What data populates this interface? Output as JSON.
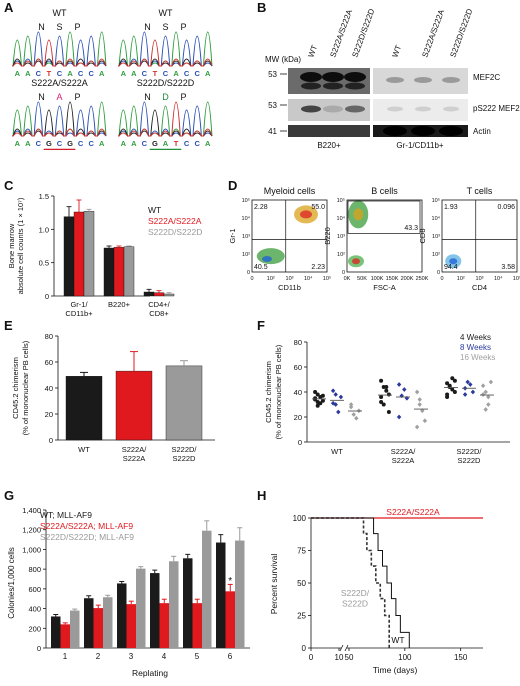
{
  "panels": {
    "A": {
      "label": "A",
      "traces": [
        {
          "title": "WT",
          "aa": [
            "N",
            "S",
            "P"
          ],
          "seq": [
            "A",
            "A",
            "C",
            "T",
            "C",
            "A",
            "C",
            "C",
            "A"
          ]
        },
        {
          "title": "WT",
          "aa": [
            "N",
            "S",
            "P"
          ],
          "seq": [
            "A",
            "A",
            "C",
            "T",
            "C",
            "A",
            "C",
            "C",
            "A"
          ]
        },
        {
          "title": "S222A/S222A",
          "aa_marked": "A",
          "seq": [
            "A",
            "A",
            "C",
            "G",
            "C",
            "G",
            "C",
            "C",
            "A"
          ]
        },
        {
          "title": "S222D/S222D",
          "aa_marked": "D",
          "seq": [
            "A",
            "A",
            "C",
            "G",
            "A",
            "T",
            "C",
            "C",
            "A"
          ]
        }
      ],
      "colors": {
        "A": "#2e9e3e",
        "C": "#2a4fb5",
        "G": "#222222",
        "T": "#d02f2f",
        "mut": "#e0207a",
        "underline_a": "#d21f2a",
        "underline_d": "#1f8f3a"
      }
    },
    "B": {
      "label": "B",
      "mw_header": "MW (kDa)",
      "mw_markers": [
        "53",
        "53",
        "41"
      ],
      "lane_labels_left": [
        "WT",
        "S222A/S222A",
        "S222D/S222D"
      ],
      "lane_labels_right": [
        "WT",
        "S222A/S222A",
        "S222D/S222D"
      ],
      "band_labels": [
        "MEF2C",
        "pS222 MEF2C",
        "Actin"
      ],
      "group_labels": [
        "B220+",
        "Gr-1/CD11b+"
      ]
    },
    "C": {
      "label": "C",
      "ylabel_1": "Bone marrow",
      "ylabel_2": "absolute cell counts (1 × 10⁷)",
      "legend": [
        "WT",
        "S222A/S222A",
        "S222D/S222D"
      ]
    },
    "D": {
      "label": "D",
      "plots": [
        {
          "title": "Myeloid cells",
          "xaxis": "CD11b",
          "yaxis": "Gr-1",
          "q": [
            "2.28",
            "55.0",
            "40.5",
            "2.23"
          ]
        },
        {
          "title": "B cells",
          "xaxis": "FSC-A",
          "yaxis": "B220",
          "gate": "43.3",
          "xticks": [
            "0K",
            "50K",
            "100K",
            "150K",
            "200K",
            "250K"
          ]
        },
        {
          "title": "T cells",
          "xaxis": "CD4",
          "yaxis": "CD8",
          "q": [
            "1.93",
            "0.096",
            "94.4",
            "3.58"
          ]
        }
      ],
      "log_ticks": [
        "0",
        "10²",
        "10³",
        "10⁴",
        "10⁵"
      ]
    },
    "E": {
      "label": "E",
      "ylabel_1": "CD45.2 chimerism",
      "ylabel_2": "(% of mononuclear PB cells)"
    },
    "F": {
      "label": "F",
      "ylabel_1": "CD45.2 chimerism",
      "ylabel_2": "(% of mononuclear PB cells)",
      "legend": [
        "4 Weeks",
        "8 Weeks",
        "16 Weeks"
      ]
    },
    "G": {
      "label": "G",
      "ylabel": "Colonies/1,000 cells",
      "xlabel": "Replating",
      "legend": [
        "WT; MLL-AF9",
        "S222A/S222A; MLL-AF9",
        "S222D/S222D; MLL-AF9"
      ],
      "star": "*"
    },
    "H": {
      "label": "H",
      "ylabel": "Percent survival",
      "xlabel": "Time (days)",
      "curve_labels": {
        "sa": "S222A/S222A",
        "sd_1": "S222D/",
        "sd_2": "S222D",
        "wt": "WT"
      }
    }
  },
  "colors": {
    "wt": "#1a1a1a",
    "sa": "#e0191f",
    "sd": "#9a9a9a",
    "w8": "#2b3a9c",
    "w16": "#a0a0a0"
  },
  "chart_data": [
    {
      "panel": "C",
      "type": "bar",
      "categories": [
        "Gr-1/\nCD11b+",
        "B220+",
        "CD4+/\nCD8+"
      ],
      "series": [
        {
          "name": "WT",
          "values": [
            1.19,
            0.72,
            0.06
          ]
        },
        {
          "name": "S222A/S222A",
          "values": [
            1.26,
            0.73,
            0.05
          ]
        },
        {
          "name": "S222D/S222D",
          "values": [
            1.27,
            0.74,
            0.03
          ]
        }
      ],
      "errors": [
        [
          0.15,
          0.03,
          0.04
        ],
        [
          0.18,
          0.02,
          0.03
        ],
        [
          0.03,
          0.01,
          0.02
        ]
      ],
      "ylim": [
        0,
        1.5
      ],
      "yticks": [
        "0",
        "0.5",
        "1.0",
        "1.5"
      ]
    },
    {
      "panel": "E",
      "type": "bar",
      "categories": [
        "WT",
        "S222A/\nS222A",
        "S222D/\nS222D"
      ],
      "values": [
        49,
        53,
        57
      ],
      "errors": [
        3,
        15,
        4
      ],
      "ylim": [
        0,
        80
      ],
      "yticks": [
        "0",
        "20",
        "40",
        "60",
        "80"
      ]
    },
    {
      "panel": "F",
      "type": "scatter",
      "categories": [
        "WT",
        "S222A/\nS222A",
        "S222D/\nS222D"
      ],
      "series": [
        {
          "name": "4 Weeks",
          "groups": [
            [
              35,
              38,
              31,
              37,
              34,
              29,
              36,
              33,
              40,
              32
            ],
            [
              49,
              44,
              41,
              38,
              32,
              30,
              44,
              24,
              36
            ],
            [
              47,
              44,
              51,
              40,
              38,
              45,
              42,
              49,
              36
            ]
          ]
        },
        {
          "name": "8 Weeks",
          "groups": [
            [
              41,
              30,
              24,
              36,
              31,
              38
            ],
            [
              46,
              37,
              42,
              35,
              20
            ],
            [
              43,
              48,
              46,
              40,
              38
            ]
          ]
        },
        {
          "name": "16 Weeks",
          "groups": [
            [
              28,
              22,
              19,
              25,
              30
            ],
            [
              40,
              34,
              25,
              17,
              12,
              30
            ],
            [
              45,
              40,
              30,
              48,
              38,
              26,
              36
            ]
          ]
        }
      ],
      "ylim": [
        0,
        80
      ],
      "yticks": [
        "0",
        "20",
        "40",
        "60",
        "80"
      ]
    },
    {
      "panel": "G",
      "type": "bar",
      "categories": [
        "1",
        "2",
        "3",
        "4",
        "5",
        "6"
      ],
      "series": [
        {
          "name": "WT; MLL-AF9",
          "values": [
            320,
            505,
            655,
            760,
            910,
            1070
          ]
        },
        {
          "name": "S222A/S222A; MLL-AF9",
          "values": [
            240,
            405,
            445,
            455,
            455,
            575
          ]
        },
        {
          "name": "S222D/S222D; MLL-AF9",
          "values": [
            380,
            515,
            805,
            880,
            1190,
            1090
          ]
        }
      ],
      "errors": [
        [
          20,
          25,
          20,
          30,
          40,
          80
        ],
        [
          15,
          30,
          30,
          40,
          40,
          70
        ],
        [
          15,
          20,
          20,
          50,
          100,
          130
        ]
      ],
      "ylim": [
        0,
        1400
      ],
      "yticks": [
        "0",
        "200",
        "400",
        "600",
        "800",
        "1,000",
        "1,200",
        "1,400"
      ]
    },
    {
      "panel": "H",
      "type": "line",
      "xlim": [
        0,
        170
      ],
      "ylim": [
        0,
        100
      ],
      "xticks": [
        "0",
        "10",
        "50",
        "100",
        "150"
      ],
      "yticks": [
        "0",
        "25",
        "50",
        "75",
        "100"
      ],
      "series": [
        {
          "name": "S222A/S222A",
          "x": [
            0,
            170
          ],
          "y": [
            100,
            100
          ]
        },
        {
          "name": "S222D/S222D",
          "x": [
            0,
            60,
            63,
            66,
            70,
            74,
            78,
            82,
            86
          ],
          "y": [
            100,
            100,
            88,
            75,
            63,
            50,
            38,
            25,
            0
          ]
        },
        {
          "name": "WT",
          "x": [
            0,
            68,
            72,
            76,
            80,
            84,
            88,
            92,
            96,
            104
          ],
          "y": [
            100,
            100,
            88,
            75,
            63,
            50,
            38,
            25,
            12,
            0
          ]
        }
      ]
    }
  ]
}
